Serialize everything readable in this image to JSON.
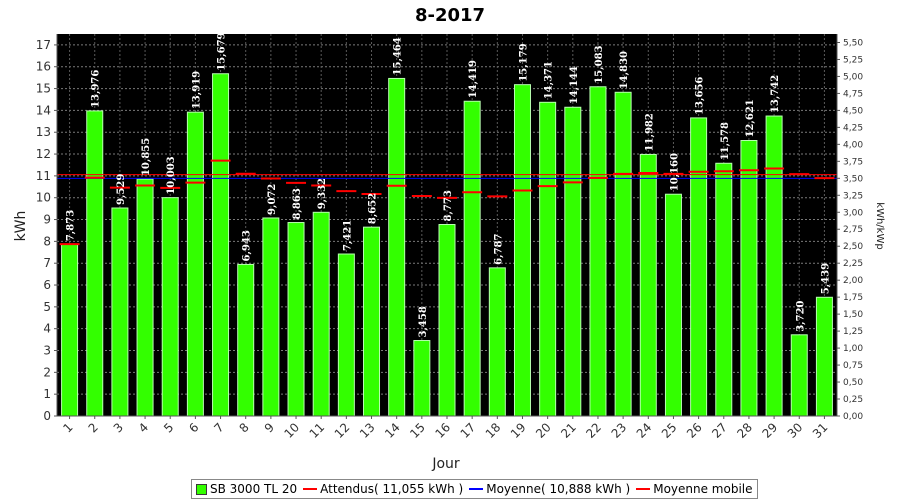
{
  "chart_data": {
    "type": "bar",
    "title": "8-2017",
    "xlabel": "Jour",
    "ylabel": "kWh",
    "y2label": "kWh/kWp",
    "ylim": [
      0,
      17.5
    ],
    "y2lim": [
      0,
      5.625
    ],
    "y_ticks": [
      0,
      1,
      2,
      3,
      4,
      5,
      6,
      7,
      8,
      9,
      10,
      11,
      12,
      13,
      14,
      15,
      16,
      17
    ],
    "y2_ticks": [
      "0,00",
      "0,25",
      "0,50",
      "0,75",
      "1,00",
      "1,25",
      "1,50",
      "1,75",
      "2,00",
      "2,25",
      "2,50",
      "2,75",
      "3,00",
      "3,25",
      "3,50",
      "3,75",
      "4,00",
      "4,25",
      "4,50",
      "4,75",
      "5,00",
      "5,25",
      "5,50"
    ],
    "grid": true,
    "legend_position": "bottom",
    "categories": [
      "1",
      "2",
      "3",
      "4",
      "5",
      "6",
      "7",
      "8",
      "9",
      "10",
      "11",
      "12",
      "13",
      "14",
      "15",
      "16",
      "17",
      "18",
      "19",
      "20",
      "21",
      "22",
      "23",
      "24",
      "25",
      "26",
      "27",
      "28",
      "29",
      "30",
      "31"
    ],
    "series": [
      {
        "name": "SB 3000 TL 20",
        "kind": "bar",
        "color": "#33ff00",
        "values": [
          7.873,
          13.976,
          9.529,
          10.855,
          10.003,
          13.919,
          15.679,
          6.943,
          9.072,
          8.863,
          9.332,
          7.421,
          8.652,
          15.464,
          3.458,
          8.773,
          14.419,
          6.787,
          15.179,
          14.371,
          14.144,
          15.083,
          14.83,
          11.982,
          10.16,
          13.656,
          11.578,
          12.621,
          13.742,
          3.72,
          5.439
        ],
        "labels": [
          "7,873",
          "13,976",
          "9,529",
          "10,855",
          "10,003",
          "13,919",
          "15,679",
          "6,943",
          "9,072",
          "8,863",
          "9,332",
          "7,421",
          "8,652",
          "15,464",
          "3,458",
          "8,773",
          "14,419",
          "6,787",
          "15,179",
          "14,371",
          "14,144",
          "15,083",
          "14,830",
          "11,982",
          "10,160",
          "13,656",
          "11,578",
          "12,621",
          "13,742",
          "3,720",
          "5,439"
        ]
      },
      {
        "name": "Moyenne mobile",
        "kind": "step",
        "color": "#ff0000",
        "values": [
          7.873,
          10.92,
          10.46,
          10.56,
          10.45,
          10.69,
          11.7,
          11.1,
          10.88,
          10.68,
          10.56,
          10.3,
          10.17,
          10.55,
          10.08,
          9.99,
          10.25,
          10.06,
          10.33,
          10.53,
          10.7,
          10.91,
          11.09,
          11.13,
          11.09,
          11.19,
          11.21,
          11.26,
          11.34,
          11.08,
          10.9
        ]
      }
    ],
    "reference_lines": [
      {
        "name": "Attendus",
        "value": 11.055,
        "color": "#ff0000"
      },
      {
        "name": "Moyenne",
        "value": 10.888,
        "color": "#0000ff"
      }
    ]
  },
  "legend": [
    {
      "label": "SB 3000 TL 20",
      "type": "box",
      "color": "#33ff00"
    },
    {
      "label": "Attendus( 11,055 kWh )",
      "type": "line",
      "color": "#ff0000"
    },
    {
      "label": "Moyenne( 10,888 kWh )",
      "type": "line",
      "color": "#0000ff"
    },
    {
      "label": "Moyenne mobile",
      "type": "line",
      "color": "#ff0000"
    }
  ]
}
